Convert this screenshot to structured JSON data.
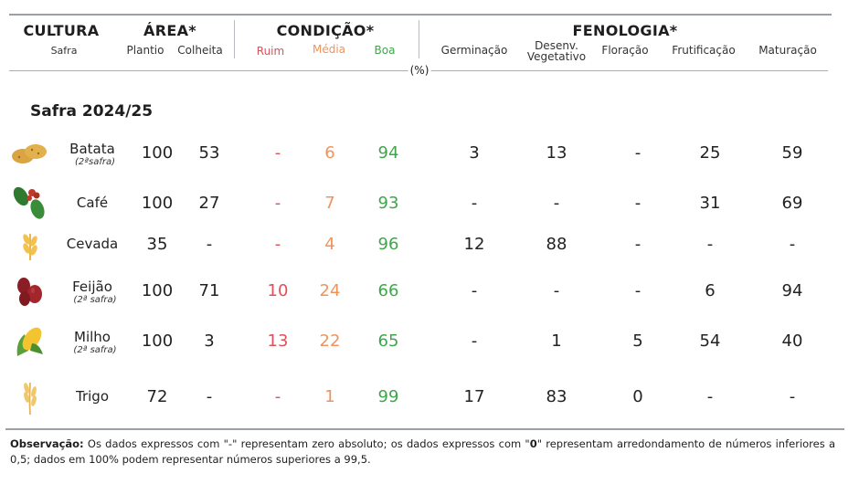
{
  "header": {
    "cultura": "CULTURA",
    "safra": "Safra",
    "area": "ÁREA*",
    "plantio": "Plantio",
    "colheita": "Colheita",
    "condicao": "CONDIÇÃO*",
    "ruim": "Ruim",
    "media": "Média",
    "boa": "Boa",
    "fenologia": "FENOLOGIA*",
    "germinacao": "Germinação",
    "desenv_1": "Desenv.",
    "desenv_2": "Vegetativo",
    "floracao": "Floração",
    "frutificacao": "Frutificação",
    "maturacao": "Maturação",
    "unit": "(%)"
  },
  "section_title": "Safra 2024/25",
  "rows": [
    {
      "name": "Batata",
      "sub": "(2ªsafra)",
      "icon": "potato-icon",
      "plantio": "100",
      "colheita": "53",
      "ruim": "-",
      "media": "6",
      "boa": "94",
      "germinacao": "3",
      "desenv": "13",
      "floracao": "-",
      "frutificacao": "25",
      "maturacao": "59"
    },
    {
      "name": "Café",
      "sub": "",
      "icon": "coffee-icon",
      "plantio": "100",
      "colheita": "27",
      "ruim": "-",
      "media": "7",
      "boa": "93",
      "germinacao": "-",
      "desenv": "-",
      "floracao": "-",
      "frutificacao": "31",
      "maturacao": "69"
    },
    {
      "name": "Cevada",
      "sub": "",
      "icon": "barley-icon",
      "plantio": "35",
      "colheita": "-",
      "ruim": "-",
      "media": "4",
      "boa": "96",
      "germinacao": "12",
      "desenv": "88",
      "floracao": "-",
      "frutificacao": "-",
      "maturacao": "-"
    },
    {
      "name": "Feijão",
      "sub": "(2ª safra)",
      "icon": "bean-icon",
      "plantio": "100",
      "colheita": "71",
      "ruim": "10",
      "media": "24",
      "boa": "66",
      "germinacao": "-",
      "desenv": "-",
      "floracao": "-",
      "frutificacao": "6",
      "maturacao": "94"
    },
    {
      "name": "Milho",
      "sub": "(2ª safra)",
      "icon": "corn-icon",
      "plantio": "100",
      "colheita": "3",
      "ruim": "13",
      "media": "22",
      "boa": "65",
      "germinacao": "-",
      "desenv": "1",
      "floracao": "5",
      "frutificacao": "54",
      "maturacao": "40"
    },
    {
      "name": "Trigo",
      "sub": "",
      "icon": "wheat-icon",
      "plantio": "72",
      "colheita": "-",
      "ruim": "-",
      "media": "1",
      "boa": "99",
      "germinacao": "17",
      "desenv": "83",
      "floracao": "0",
      "frutificacao": "-",
      "maturacao": "-"
    }
  ],
  "note": {
    "label": "Observação:",
    "text_1": " Os dados expressos com \"-\" representam zero absoluto; os dados expressos com \"",
    "zero": "0",
    "text_2": "\" representam arredondamento de números inferiores a 0,5; dados em 100% podem representar números superiores a 99,5."
  },
  "colors": {
    "ruim": "#e0505a",
    "media": "#f0935a",
    "boa": "#3fa64b"
  }
}
